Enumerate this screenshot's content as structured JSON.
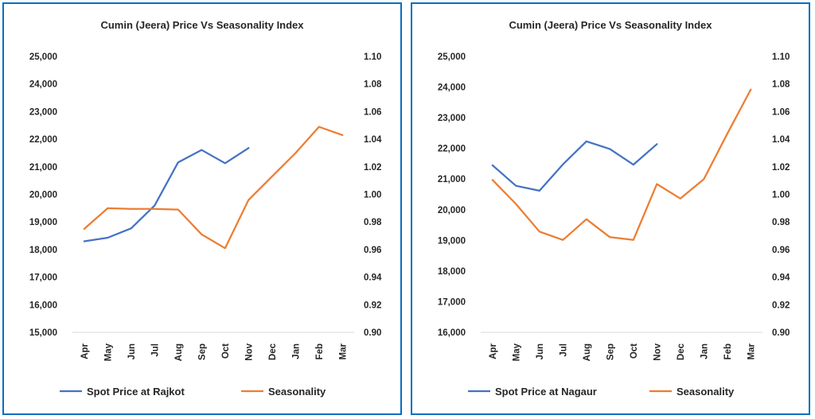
{
  "colors": {
    "spot": "#4472c4",
    "seasonality": "#ed7d31",
    "border": "#0070c0"
  },
  "chart_data": [
    {
      "type": "line",
      "title": "Cumin (Jeera) Price Vs Seasonality Index",
      "categories": [
        "Apr",
        "May",
        "Jun",
        "Jul",
        "Aug",
        "Sep",
        "Oct",
        "Nov",
        "Dec",
        "Jan",
        "Feb",
        "Mar"
      ],
      "y_left": {
        "min": 15000,
        "max": 25000,
        "ticks": [
          "25,000",
          "24,000",
          "23,000",
          "22,000",
          "21,000",
          "20,000",
          "19,000",
          "18,000",
          "17,000",
          "16,000",
          "15,000"
        ]
      },
      "y_right": {
        "min": 0.9,
        "max": 1.1,
        "ticks": [
          "1.10",
          "1.08",
          "1.06",
          "1.04",
          "1.02",
          "1.00",
          "0.98",
          "0.96",
          "0.94",
          "0.92",
          "0.90"
        ]
      },
      "grid": false,
      "legend": "bottom",
      "series": [
        {
          "name": "Spot Price at Rajkot",
          "axis": "left",
          "values": [
            18300,
            18430,
            18770,
            19600,
            21160,
            21610,
            21130,
            21680,
            null,
            null,
            null,
            null
          ]
        },
        {
          "name": "Seasonality",
          "axis": "right",
          "values": [
            0.975,
            0.99,
            0.9895,
            0.9895,
            0.989,
            0.971,
            0.961,
            0.996,
            1.013,
            1.03,
            1.049,
            1.043
          ]
        }
      ]
    },
    {
      "type": "line",
      "title": "Cumin (Jeera) Price Vs Seasonality Index",
      "categories": [
        "Apr",
        "May",
        "Jun",
        "Jul",
        "Aug",
        "Sep",
        "Oct",
        "Nov",
        "Dec",
        "Jan",
        "Feb",
        "Mar"
      ],
      "y_left": {
        "min": 16000,
        "max": 25000,
        "ticks": [
          "25,000",
          "24,000",
          "23,000",
          "22,000",
          "21,000",
          "20,000",
          "19,000",
          "18,000",
          "17,000",
          "16,000"
        ]
      },
      "y_right": {
        "min": 0.9,
        "max": 1.1,
        "ticks": [
          "1.10",
          "1.08",
          "1.06",
          "1.04",
          "1.02",
          "1.00",
          "0.98",
          "0.96",
          "0.94",
          "0.92",
          "0.90"
        ]
      },
      "grid": false,
      "legend": "bottom",
      "series": [
        {
          "name": "Spot Price at Nagaur",
          "axis": "left",
          "values": [
            21450,
            20780,
            20620,
            21480,
            22230,
            21980,
            21470,
            22140,
            null,
            null,
            null,
            null
          ]
        },
        {
          "name": "Seasonality",
          "axis": "right",
          "values": [
            1.0105,
            0.993,
            0.973,
            0.967,
            0.982,
            0.969,
            0.967,
            1.0075,
            0.997,
            1.011,
            1.044,
            1.076
          ]
        }
      ]
    }
  ]
}
